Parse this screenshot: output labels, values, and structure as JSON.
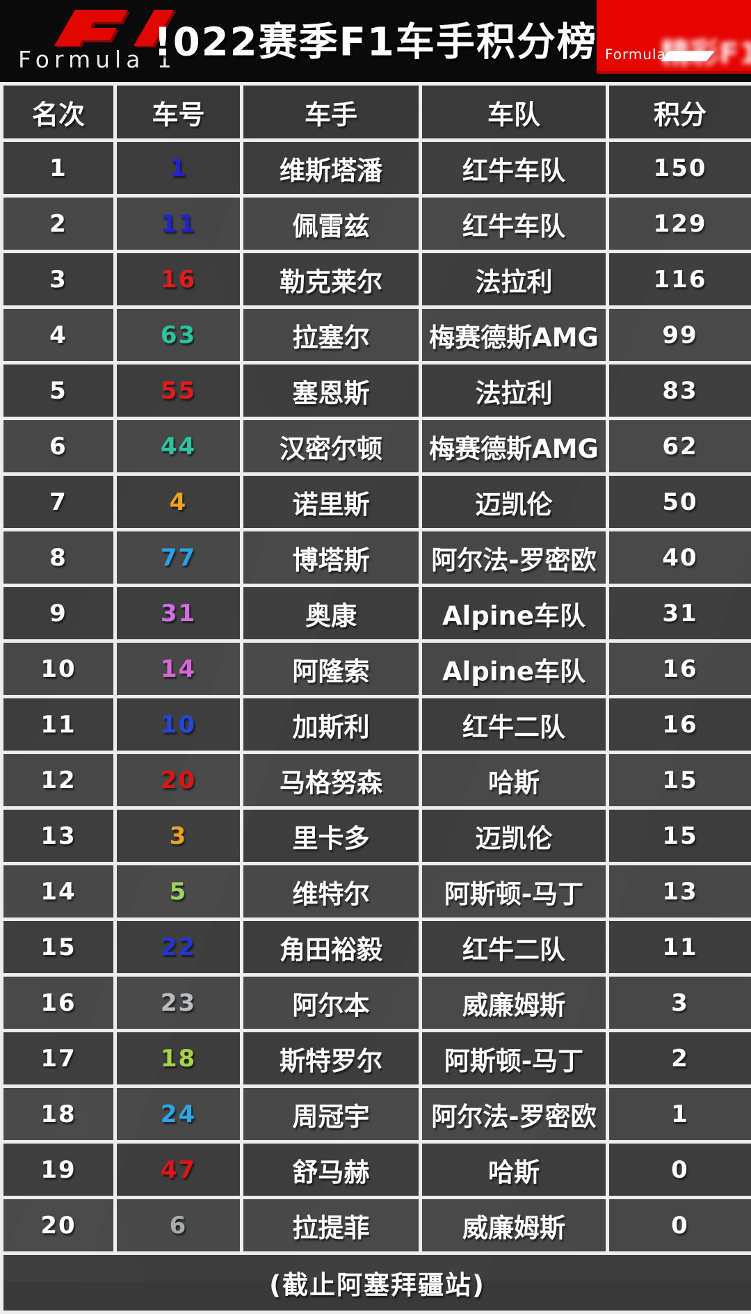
{
  "header": {
    "title": "!022赛季F1车手积分榜",
    "left_logo": {
      "brand": "F1",
      "wordmark": "Formula 1"
    },
    "right_logo": {
      "wordmark": "Formula",
      "blurred_text": "精彩F1"
    }
  },
  "colors": {
    "f1_red": "#e60400",
    "topbar_black": "#0a0a0a",
    "table_border": "#ededed",
    "cell_background": "#3e3e3e"
  },
  "chart_data": {
    "type": "table",
    "title": "!022赛季F1车手积分榜",
    "columns": [
      "名次",
      "车号",
      "车手",
      "车队",
      "积分"
    ],
    "rows": [
      {
        "rank": "1",
        "number": "1",
        "number_color": "#2123cf",
        "driver": "维斯塔潘",
        "team": "红牛车队",
        "points": "150"
      },
      {
        "rank": "2",
        "number": "11",
        "number_color": "#2123cf",
        "driver": "佩雷兹",
        "team": "红牛车队",
        "points": "129"
      },
      {
        "rank": "3",
        "number": "16",
        "number_color": "#e41b1b",
        "driver": "勒克莱尔",
        "team": "法拉利",
        "points": "116"
      },
      {
        "rank": "4",
        "number": "63",
        "number_color": "#2dc49c",
        "driver": "拉塞尔",
        "team": "梅赛德斯AMG",
        "points": "99"
      },
      {
        "rank": "5",
        "number": "55",
        "number_color": "#e41b1b",
        "driver": "塞恩斯",
        "team": "法拉利",
        "points": "83"
      },
      {
        "rank": "6",
        "number": "44",
        "number_color": "#2dc49c",
        "driver": "汉密尔顿",
        "team": "梅赛德斯AMG",
        "points": "62"
      },
      {
        "rank": "7",
        "number": "4",
        "number_color": "#f1a11f",
        "driver": "诺里斯",
        "team": "迈凯伦",
        "points": "50"
      },
      {
        "rank": "8",
        "number": "77",
        "number_color": "#2aa1e8",
        "driver": "博塔斯",
        "team": "阿尔法-罗密欧",
        "points": "40"
      },
      {
        "rank": "9",
        "number": "31",
        "number_color": "#cf70e3",
        "driver": "奥康",
        "team": "Alpine车队",
        "points": "31"
      },
      {
        "rank": "10",
        "number": "14",
        "number_color": "#d767d7",
        "driver": "阿隆索",
        "team": "Alpine车队",
        "points": "16"
      },
      {
        "rank": "11",
        "number": "10",
        "number_color": "#2347de",
        "driver": "加斯利",
        "team": "红牛二队",
        "points": "16"
      },
      {
        "rank": "12",
        "number": "20",
        "number_color": "#e01414",
        "driver": "马格努森",
        "team": "哈斯",
        "points": "15"
      },
      {
        "rank": "13",
        "number": "3",
        "number_color": "#f1a11f",
        "driver": "里卡多",
        "team": "迈凯伦",
        "points": "15"
      },
      {
        "rank": "14",
        "number": "5",
        "number_color": "#9ed35f",
        "driver": "维特尔",
        "team": "阿斯顿-马丁",
        "points": "13"
      },
      {
        "rank": "15",
        "number": "22",
        "number_color": "#2335d7",
        "driver": "角田裕毅",
        "team": "红牛二队",
        "points": "11"
      },
      {
        "rank": "16",
        "number": "23",
        "number_color": "#babdbf",
        "driver": "阿尔本",
        "team": "威廉姆斯",
        "points": "3"
      },
      {
        "rank": "17",
        "number": "18",
        "number_color": "#a7d347",
        "driver": "斯特罗尔",
        "team": "阿斯顿-马丁",
        "points": "2"
      },
      {
        "rank": "18",
        "number": "24",
        "number_color": "#29a7e9",
        "driver": "周冠宇",
        "team": "阿尔法-罗密欧",
        "points": "1"
      },
      {
        "rank": "19",
        "number": "47",
        "number_color": "#e01414",
        "driver": "舒马赫",
        "team": "哈斯",
        "points": "0"
      },
      {
        "rank": "20",
        "number": "6",
        "number_color": "#a9acae",
        "driver": "拉提菲",
        "team": "威廉姆斯",
        "points": "0"
      }
    ],
    "footnote": "(截止阿塞拜疆站)",
    "legend_position": "none",
    "grid": true
  }
}
